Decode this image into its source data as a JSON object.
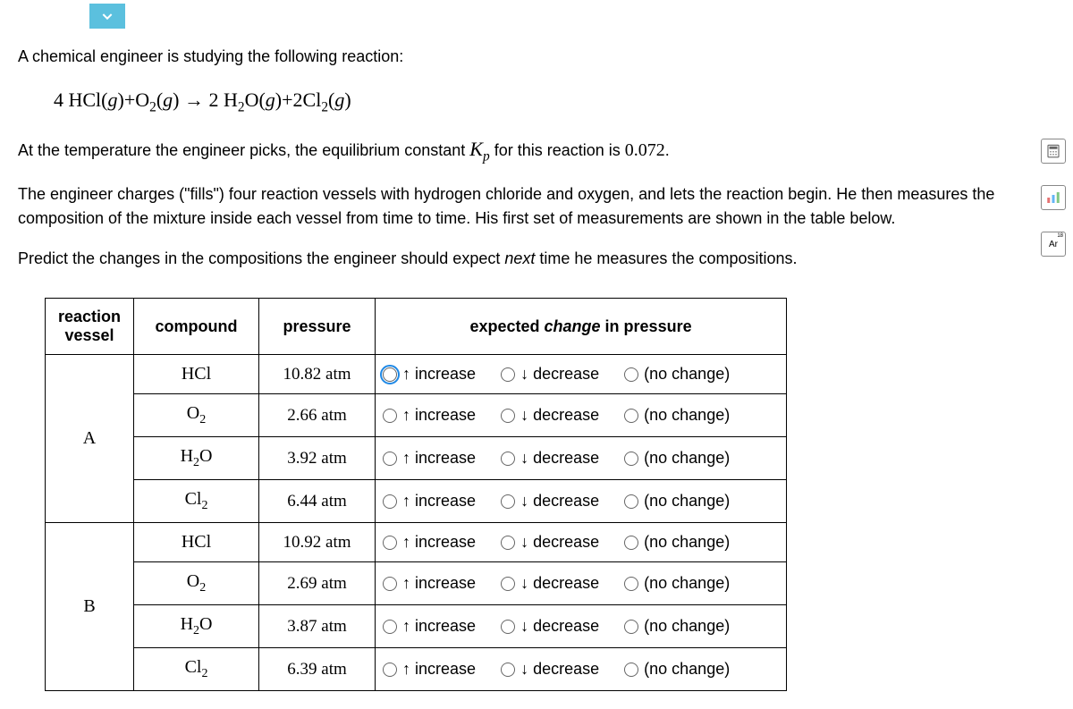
{
  "chevron": {
    "name": "chevron-down-icon"
  },
  "intro": "A chemical engineer is studying the following reaction:",
  "equation_html": "4 HCl(<i>g</i>)+O<span class='sub'>2</span>(<i>g</i>) → 2 H<span class='sub'>2</span>O(<i>g</i>)+2Cl<span class='sub'>2</span>(<i>g</i>)",
  "para2_pre": "At the temperature the engineer picks, the equilibrium constant ",
  "para2_kp": "K",
  "para2_kp_sub": "p",
  "para2_mid": " for this reaction is ",
  "kp_value": "0.072",
  "para2_post": ".",
  "para3": "The engineer charges (\"fills\") four reaction vessels with hydrogen chloride and oxygen, and lets the reaction begin. He then measures the composition of the mixture inside each vessel from time to time. His first set of measurements are shown in the table below.",
  "para4_pre": "Predict the changes in the compositions the engineer should expect ",
  "para4_em": "next",
  "para4_post": " time he measures the compositions.",
  "side_icons": {
    "calc": "calc-icon",
    "bars": "bars-icon",
    "ar": "Ar",
    "ar_num": "18"
  },
  "headers": {
    "vessel_l1": "reaction",
    "vessel_l2": "vessel",
    "compound": "compound",
    "pressure": "pressure",
    "change_pre": "expected ",
    "change_em": "change",
    "change_post": " in pressure"
  },
  "options": {
    "increase": "↑ increase",
    "decrease": "↓ decrease",
    "nochange": "(no change)"
  },
  "vessels": [
    {
      "label": "A",
      "rows": [
        {
          "compound_html": "HCl",
          "pressure": "10.82 atm",
          "focused": true
        },
        {
          "compound_html": "O<span class='sub'>2</span>",
          "pressure": "2.66 atm",
          "focused": false
        },
        {
          "compound_html": "H<span class='sub'>2</span>O",
          "pressure": "3.92 atm",
          "focused": false
        },
        {
          "compound_html": "Cl<span class='sub'>2</span>",
          "pressure": "6.44 atm",
          "focused": false
        }
      ]
    },
    {
      "label": "B",
      "rows": [
        {
          "compound_html": "HCl",
          "pressure": "10.92 atm",
          "focused": false
        },
        {
          "compound_html": "O<span class='sub'>2</span>",
          "pressure": "2.69 atm",
          "focused": false
        },
        {
          "compound_html": "H<span class='sub'>2</span>O",
          "pressure": "3.87 atm",
          "focused": false
        },
        {
          "compound_html": "Cl<span class='sub'>2</span>",
          "pressure": "6.39 atm",
          "focused": false
        }
      ]
    }
  ]
}
